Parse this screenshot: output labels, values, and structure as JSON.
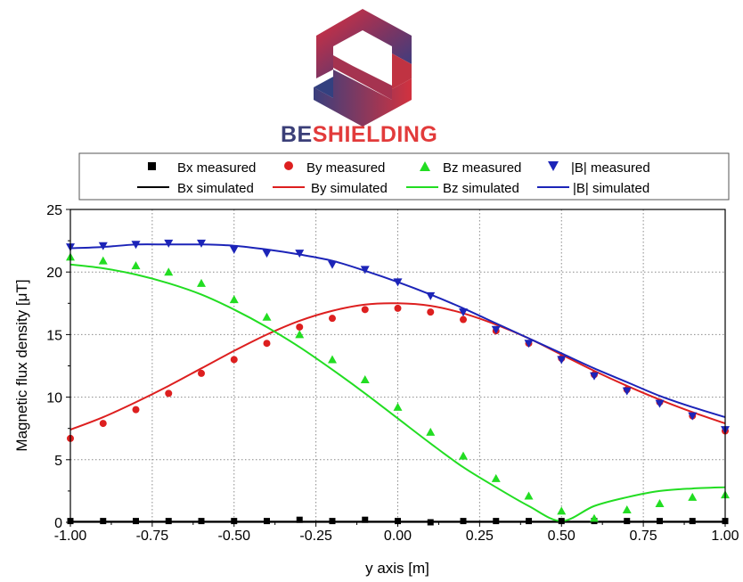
{
  "brand": {
    "name_part1": "BE",
    "name_part2": "SHIELDING",
    "color_part1": "#3b3f78",
    "color_part2": "#e23b3b"
  },
  "chart_data": {
    "type": "scatter",
    "xlabel": "y axis [m]",
    "ylabel_prefix": "Magnetic flux density [",
    "ylabel_unit": "μT",
    "ylabel_suffix": "]",
    "xlim": [
      -1.0,
      1.0
    ],
    "ylim": [
      0,
      25
    ],
    "xticks": [
      -1.0,
      -0.75,
      -0.5,
      -0.25,
      0.0,
      0.25,
      0.5,
      0.75,
      1.0
    ],
    "xtick_labels": [
      "-1.00",
      "-0.75",
      "-0.50",
      "-0.25",
      "0.00",
      "0.25",
      "0.50",
      "0.75",
      "1.00"
    ],
    "yticks": [
      0,
      5,
      10,
      15,
      20,
      25
    ],
    "ytick_labels": [
      "0",
      "5",
      "10",
      "15",
      "20",
      "25"
    ],
    "grid": true,
    "legend_position": "top",
    "legend": {
      "bx_measured": "Bx measured",
      "by_measured": "By measured",
      "bz_measured": "Bz measured",
      "b_measured": "|B| measured",
      "bx_simulated": "Bx simulated",
      "by_simulated": "By simulated",
      "bz_simulated": "Bz simulated",
      "b_simulated": "|B| simulated"
    },
    "colors": {
      "bx": "#000000",
      "by": "#dd1f1f",
      "bz": "#22dd22",
      "b": "#1c24b8"
    },
    "measured": {
      "x": [
        -1.0,
        -0.9,
        -0.8,
        -0.7,
        -0.6,
        -0.5,
        -0.4,
        -0.3,
        -0.2,
        -0.1,
        0.0,
        0.1,
        0.2,
        0.3,
        0.4,
        0.5,
        0.6,
        0.7,
        0.8,
        0.9,
        1.0
      ],
      "bx": [
        0.1,
        0.1,
        0.1,
        0.1,
        0.1,
        0.1,
        0.1,
        0.2,
        0.1,
        0.2,
        0.1,
        0.0,
        0.1,
        0.1,
        0.1,
        0.1,
        0.1,
        0.1,
        0.1,
        0.1,
        0.1
      ],
      "by": [
        6.7,
        7.9,
        9.0,
        10.3,
        11.9,
        13.0,
        14.3,
        15.6,
        16.3,
        17.0,
        17.1,
        16.8,
        16.2,
        15.3,
        14.3,
        13.1,
        11.8,
        10.6,
        9.6,
        8.5,
        7.3
      ],
      "bz": [
        21.2,
        20.9,
        20.5,
        20.0,
        19.1,
        17.8,
        16.4,
        15.0,
        13.0,
        11.4,
        9.2,
        7.2,
        5.3,
        3.5,
        2.1,
        0.9,
        0.3,
        1.0,
        1.5,
        2.0,
        2.2
      ],
      "b": [
        22.0,
        22.1,
        22.2,
        22.3,
        22.3,
        21.8,
        21.5,
        21.5,
        20.6,
        20.2,
        19.2,
        18.1,
        16.8,
        15.4,
        14.3,
        13.0,
        11.7,
        10.5,
        9.5,
        8.5,
        7.4
      ]
    },
    "simulated": {
      "x": [
        -1.0,
        -0.9,
        -0.8,
        -0.7,
        -0.6,
        -0.5,
        -0.4,
        -0.3,
        -0.2,
        -0.1,
        0.0,
        0.1,
        0.2,
        0.3,
        0.4,
        0.5,
        0.6,
        0.7,
        0.8,
        0.9,
        1.0
      ],
      "bx": [
        0.05,
        0.05,
        0.05,
        0.05,
        0.05,
        0.05,
        0.05,
        0.05,
        0.05,
        0.05,
        0.05,
        0.05,
        0.05,
        0.05,
        0.05,
        0.05,
        0.05,
        0.05,
        0.05,
        0.05,
        0.05
      ],
      "by": [
        7.4,
        8.4,
        9.6,
        10.9,
        12.3,
        13.7,
        15.0,
        16.1,
        16.9,
        17.4,
        17.5,
        17.3,
        16.7,
        15.8,
        14.7,
        13.4,
        12.1,
        10.9,
        9.8,
        8.8,
        7.9
      ],
      "bz": [
        20.6,
        20.3,
        19.8,
        19.1,
        18.2,
        17.0,
        15.6,
        14.0,
        12.2,
        10.3,
        8.3,
        6.3,
        4.4,
        2.8,
        1.3,
        0.1,
        1.3,
        2.0,
        2.5,
        2.7,
        2.8
      ],
      "b": [
        21.9,
        22.0,
        22.2,
        22.2,
        22.2,
        22.1,
        21.8,
        21.4,
        20.9,
        20.1,
        19.2,
        18.2,
        17.1,
        15.9,
        14.7,
        13.5,
        12.3,
        11.2,
        10.1,
        9.2,
        8.4
      ]
    }
  }
}
